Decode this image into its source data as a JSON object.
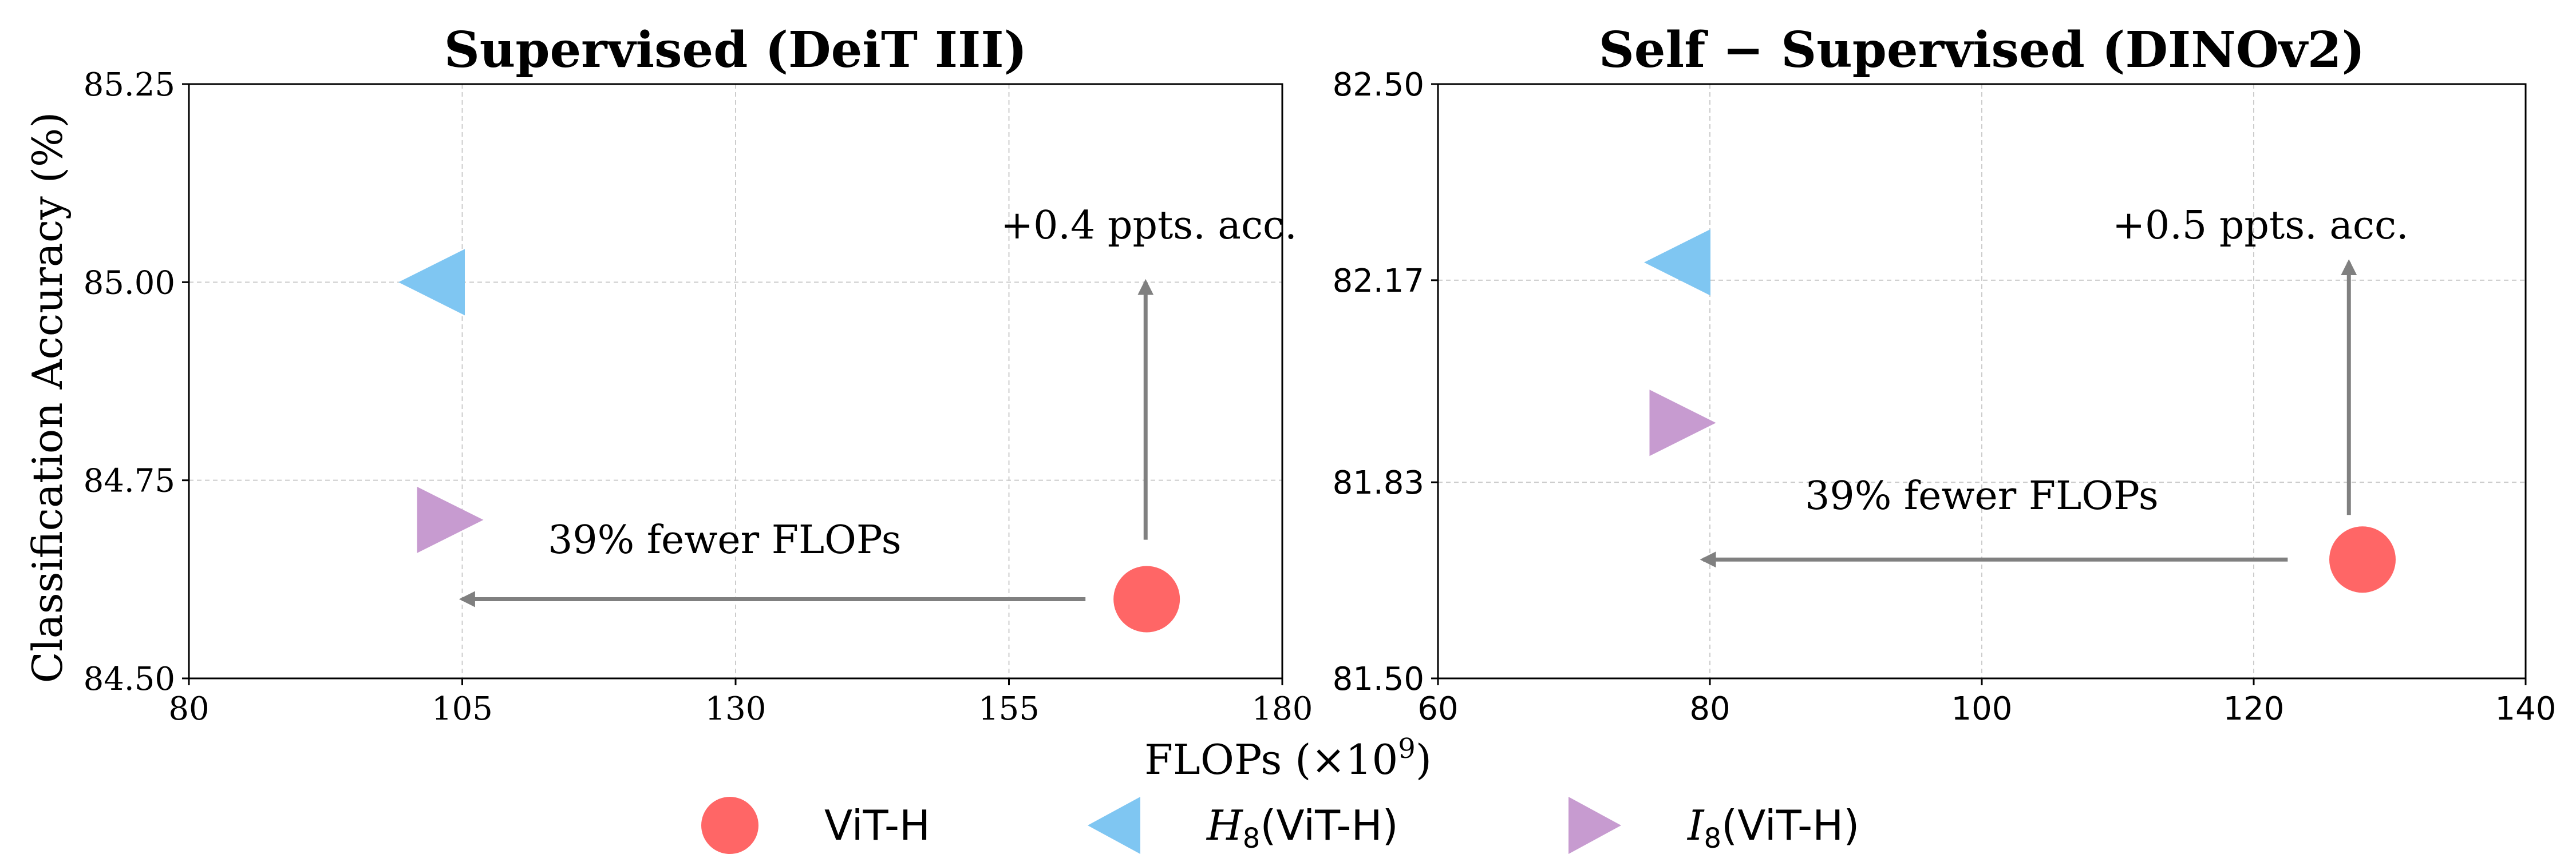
{
  "shared": {
    "xlabel": "FLOPs (×10",
    "xlabel_exp": "9",
    "xlabel_close": ")",
    "ylabel": "Classification Accuracy (%)"
  },
  "legend": {
    "placement": "bottom-center",
    "items": [
      {
        "label": "ViT-H",
        "marker": "circle",
        "color": "#FF6666"
      },
      {
        "label": "H",
        "sub": "8",
        "suffix": "(ViT-H)",
        "marker": "triangle-left",
        "color": "#7FC6F2"
      },
      {
        "label": "I",
        "sub": "8",
        "suffix": "(ViT-H)",
        "marker": "triangle-right",
        "color": "#C79BD0"
      }
    ]
  },
  "chart_data": [
    {
      "type": "scatter",
      "title": "Supervised (DeiT III)",
      "xlim": [
        80,
        180
      ],
      "ylim": [
        84.5,
        85.25
      ],
      "xticks": [
        80,
        105,
        130,
        155,
        180
      ],
      "xtick_labels": [
        "80",
        "105",
        "130",
        "155",
        "180"
      ],
      "yticks": [
        84.5,
        84.75,
        85.0,
        85.25
      ],
      "ytick_labels": [
        "84.50",
        "84.75",
        "85.00",
        "85.25"
      ],
      "grid": true,
      "series": [
        {
          "name": "ViT-H",
          "marker": "circle",
          "color": "#FF6666",
          "x": [
            167.6
          ],
          "y": [
            84.6
          ]
        },
        {
          "name": "H8(ViT-H)",
          "marker": "triangle-left",
          "color": "#7FC6F2",
          "x": [
            102.2
          ],
          "y": [
            85.0
          ]
        },
        {
          "name": "I8(ViT-H)",
          "marker": "triangle-right",
          "color": "#C79BD0",
          "x": [
            103.9
          ],
          "y": [
            84.7
          ]
        }
      ],
      "annotations": [
        {
          "text": "39% fewer FLOPs",
          "arrow": "left",
          "from": [
            162.0,
            84.6
          ],
          "to": [
            105.0,
            84.6
          ],
          "text_at": [
            129.0,
            84.658
          ]
        },
        {
          "text": "+0.4 ppts. acc.",
          "arrow": "up",
          "from": [
            167.5,
            84.675
          ],
          "to": [
            167.5,
            85.0
          ],
          "text_at": [
            167.8,
            85.055
          ]
        }
      ]
    },
    {
      "type": "scatter",
      "title": "Self − Supervised (DINOv2)",
      "xlim": [
        60,
        140
      ],
      "ylim": [
        81.5,
        82.5
      ],
      "xticks": [
        60,
        80,
        100,
        120,
        140
      ],
      "xtick_labels": [
        "60",
        "80",
        "100",
        "120",
        "140"
      ],
      "yticks": [
        81.5,
        81.83,
        82.17,
        82.5
      ],
      "ytick_labels": [
        "81.50",
        "81.83",
        "82.17",
        "82.50"
      ],
      "grid": true,
      "series": [
        {
          "name": "ViT-H",
          "marker": "circle",
          "color": "#FF6666",
          "x": [
            128.0
          ],
          "y": [
            81.7
          ]
        },
        {
          "name": "H8(ViT-H)",
          "marker": "triangle-left",
          "color": "#7FC6F2",
          "x": [
            77.6
          ],
          "y": [
            82.2
          ]
        },
        {
          "name": "I8(ViT-H)",
          "marker": "triangle-right",
          "color": "#C79BD0",
          "x": [
            78.0
          ],
          "y": [
            81.93
          ]
        }
      ],
      "annotations": [
        {
          "text": "39% fewer FLOPs",
          "arrow": "left",
          "from": [
            122.5,
            81.7
          ],
          "to": [
            79.5,
            81.7
          ],
          "text_at": [
            100.0,
            81.785
          ]
        },
        {
          "text": "+0.5 ppts. acc.",
          "arrow": "up",
          "from": [
            127.0,
            81.775
          ],
          "to": [
            127.0,
            82.2
          ],
          "text_at": [
            120.5,
            82.24
          ]
        }
      ]
    }
  ]
}
